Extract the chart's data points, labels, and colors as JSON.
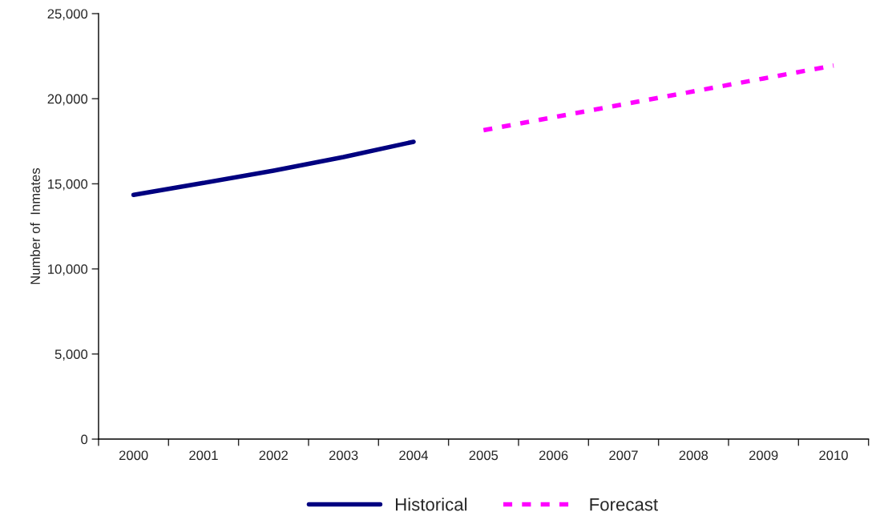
{
  "chart_data": {
    "type": "line",
    "ylabel": "Number of  Inmates",
    "categories": [
      "2000",
      "2001",
      "2002",
      "2003",
      "2004",
      "2005",
      "2006",
      "2007",
      "2008",
      "2009",
      "2010"
    ],
    "series": [
      {
        "name": "Historical",
        "color": "#000080",
        "line_style": "solid",
        "values": [
          14350,
          15050,
          15770,
          16570,
          17470,
          null,
          null,
          null,
          null,
          null,
          null
        ]
      },
      {
        "name": "Forecast",
        "color": "#ff00ff",
        "line_style": "dashed",
        "values": [
          null,
          null,
          null,
          null,
          null,
          18150,
          18910,
          19670,
          20430,
          21190,
          21950
        ]
      }
    ],
    "ylim": [
      0,
      25000
    ],
    "yticks": [
      {
        "value": 0,
        "label": "0"
      },
      {
        "value": 5000,
        "label": "5,000"
      },
      {
        "value": 10000,
        "label": "10,000"
      },
      {
        "value": 15000,
        "label": "15,000"
      },
      {
        "value": 20000,
        "label": "20,000"
      },
      {
        "value": 25000,
        "label": "25,000"
      }
    ],
    "grid": false,
    "legend": "bottom",
    "marker": "none"
  }
}
